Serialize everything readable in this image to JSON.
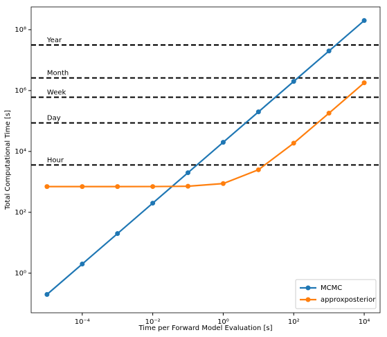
{
  "chart_data": {
    "type": "line",
    "xlabel": "Time per Forward Model Evaluation [s]",
    "ylabel": "Total Computational Time [s]",
    "x": [
      1e-05,
      0.0001,
      0.001,
      0.01,
      0.1,
      1,
      10,
      100,
      1000,
      10000
    ],
    "series": [
      {
        "name": "MCMC",
        "color": "#1f77b4",
        "values": [
          0.2,
          2,
          20,
          200,
          2000,
          20000,
          200000,
          2000000,
          20000000,
          200000000
        ]
      },
      {
        "name": "approxposterior",
        "color": "#ff7f0e",
        "values": [
          700,
          700,
          700,
          702,
          718,
          880,
          2500,
          18700,
          180700,
          1800700
        ]
      }
    ],
    "xscale": "log",
    "yscale": "log",
    "xlim": [
      3.55e-06,
      28200
    ],
    "ylim": [
      0.05,
      560000000
    ],
    "xticks": [
      {
        "value": 0.0001,
        "label": "10⁻⁴"
      },
      {
        "value": 0.01,
        "label": "10⁻²"
      },
      {
        "value": 1,
        "label": "10⁰"
      },
      {
        "value": 100,
        "label": "10²"
      },
      {
        "value": 10000,
        "label": "10⁴"
      }
    ],
    "yticks": [
      {
        "value": 1,
        "label": "10⁰"
      },
      {
        "value": 100,
        "label": "10²"
      },
      {
        "value": 10000,
        "label": "10⁴"
      },
      {
        "value": 1000000,
        "label": "10⁶"
      },
      {
        "value": 100000000,
        "label": "10⁸"
      }
    ],
    "hlines": [
      {
        "value": 3600,
        "label": "Hour"
      },
      {
        "value": 86400,
        "label": "Day"
      },
      {
        "value": 604800,
        "label": "Week"
      },
      {
        "value": 2592000,
        "label": "Month"
      },
      {
        "value": 31536000,
        "label": "Year"
      }
    ],
    "hline_color": "#000000",
    "legend": "lower right"
  }
}
